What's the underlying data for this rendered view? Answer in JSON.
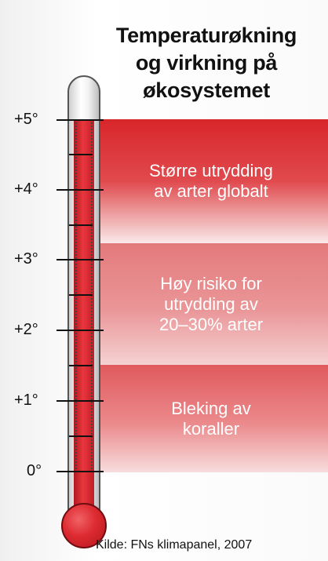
{
  "title": {
    "line1": "Temperaturøkning",
    "line2": "og virkning på",
    "line3": "økosystemet"
  },
  "thermometer": {
    "scale_labels": [
      "+5°",
      "+4°",
      "+3°",
      "+2°",
      "+1°",
      "0°"
    ],
    "liquid_color": "#dd2b31"
  },
  "bands": [
    {
      "lines": [
        "Større utrydding",
        "av arter globalt"
      ],
      "color": "#d8262a"
    },
    {
      "lines": [
        "Høy risiko for",
        "utrydding av",
        "20–30% arter"
      ],
      "color": "#e37a7c"
    },
    {
      "lines": [
        "Bleking av",
        "koraller"
      ],
      "color": "#e05a5d"
    }
  ],
  "source": "Kilde: FNs klimapanel, 2007"
}
